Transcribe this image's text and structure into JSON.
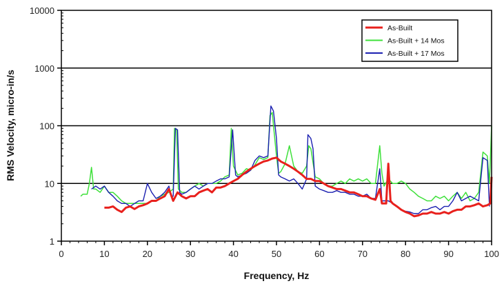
{
  "chart_data": {
    "type": "line",
    "title": "",
    "xlabel": "Frequency, Hz",
    "ylabel": "RMS Velocity, micro-in/s",
    "xlim": [
      0,
      100
    ],
    "ylim": [
      1,
      10000
    ],
    "yscale": "log",
    "x_ticks": [
      "0",
      "10",
      "20",
      "30",
      "40",
      "50",
      "60",
      "70",
      "80",
      "90",
      "100"
    ],
    "y_ticks": [
      "1",
      "10",
      "100",
      "1000",
      "10000"
    ],
    "grid": "horizontal at decades",
    "legend_position": "top-right",
    "series": [
      {
        "name": "As-Built",
        "color": "#e8201c",
        "points": [
          [
            10,
            3.8
          ],
          [
            11,
            3.8
          ],
          [
            12,
            4
          ],
          [
            13,
            3.5
          ],
          [
            14,
            3.2
          ],
          [
            15,
            3.8
          ],
          [
            16,
            4
          ],
          [
            17,
            3.6
          ],
          [
            18,
            4
          ],
          [
            19,
            4.2
          ],
          [
            20,
            4.5
          ],
          [
            21,
            5
          ],
          [
            22,
            5
          ],
          [
            23,
            5.5
          ],
          [
            24,
            6
          ],
          [
            25,
            8
          ],
          [
            26,
            5
          ],
          [
            27,
            7
          ],
          [
            28,
            6
          ],
          [
            29,
            5.5
          ],
          [
            30,
            6
          ],
          [
            31,
            6
          ],
          [
            32,
            7
          ],
          [
            33,
            7.5
          ],
          [
            34,
            8
          ],
          [
            35,
            7
          ],
          [
            36,
            8.5
          ],
          [
            37,
            8.5
          ],
          [
            38,
            9
          ],
          [
            39,
            10
          ],
          [
            40,
            11
          ],
          [
            41,
            12
          ],
          [
            42,
            14
          ],
          [
            43,
            16
          ],
          [
            44,
            18
          ],
          [
            45,
            20
          ],
          [
            46,
            22
          ],
          [
            47,
            24
          ],
          [
            48,
            25
          ],
          [
            49,
            27
          ],
          [
            50,
            28
          ],
          [
            51,
            24
          ],
          [
            52,
            22
          ],
          [
            53,
            20
          ],
          [
            54,
            18
          ],
          [
            55,
            16
          ],
          [
            56,
            14
          ],
          [
            57,
            12
          ],
          [
            58,
            12
          ],
          [
            59,
            11
          ],
          [
            60,
            11
          ],
          [
            61,
            10
          ],
          [
            62,
            9
          ],
          [
            63,
            8.5
          ],
          [
            64,
            8
          ],
          [
            65,
            8
          ],
          [
            66,
            7.5
          ],
          [
            67,
            7
          ],
          [
            68,
            7
          ],
          [
            69,
            6.5
          ],
          [
            70,
            6
          ],
          [
            71,
            6
          ],
          [
            72,
            5.5
          ],
          [
            73,
            5.2
          ],
          [
            74,
            8
          ],
          [
            74.5,
            4.5
          ],
          [
            75.5,
            4.5
          ],
          [
            76,
            22
          ],
          [
            76.5,
            5
          ],
          [
            77,
            4.5
          ],
          [
            78,
            4
          ],
          [
            79,
            3.5
          ],
          [
            80,
            3.2
          ],
          [
            81,
            3
          ],
          [
            82,
            2.7
          ],
          [
            83,
            2.8
          ],
          [
            84,
            3
          ],
          [
            85,
            3
          ],
          [
            86,
            3.2
          ],
          [
            87,
            3
          ],
          [
            88,
            3
          ],
          [
            89,
            3.2
          ],
          [
            90,
            3
          ],
          [
            91,
            3.3
          ],
          [
            92,
            3.5
          ],
          [
            93,
            3.5
          ],
          [
            94,
            4
          ],
          [
            95,
            4
          ],
          [
            96,
            4.2
          ],
          [
            97,
            4.5
          ],
          [
            98,
            4
          ],
          [
            99,
            4.2
          ],
          [
            99.7,
            4.5
          ],
          [
            100,
            13
          ]
        ]
      },
      {
        "name": "As-Built + 14 Mos",
        "color": "#3ee03a",
        "points": [
          [
            4.5,
            6
          ],
          [
            5,
            6.5
          ],
          [
            6,
            6.5
          ],
          [
            6.5,
            10
          ],
          [
            7,
            19
          ],
          [
            7.5,
            8
          ],
          [
            8,
            8
          ],
          [
            9,
            7
          ],
          [
            10,
            9
          ],
          [
            11,
            7
          ],
          [
            12,
            7
          ],
          [
            13,
            6
          ],
          [
            14,
            5
          ],
          [
            15,
            4.5
          ],
          [
            16,
            4.5
          ],
          [
            17,
            4.5
          ],
          [
            18,
            4.5
          ],
          [
            19,
            4.5
          ],
          [
            20,
            4.5
          ],
          [
            21,
            5
          ],
          [
            22,
            5
          ],
          [
            23,
            6
          ],
          [
            24,
            6.5
          ],
          [
            25,
            7
          ],
          [
            26,
            8
          ],
          [
            26.3,
            90
          ],
          [
            26.8,
            85
          ],
          [
            27.2,
            8
          ],
          [
            28,
            7
          ],
          [
            29,
            7
          ],
          [
            30,
            8
          ],
          [
            31,
            9
          ],
          [
            32,
            10
          ],
          [
            33,
            9
          ],
          [
            34,
            10
          ],
          [
            35,
            10
          ],
          [
            36,
            10
          ],
          [
            37,
            11
          ],
          [
            38,
            13
          ],
          [
            39,
            14
          ],
          [
            39.5,
            90
          ],
          [
            40,
            20
          ],
          [
            41,
            14
          ],
          [
            42,
            15
          ],
          [
            43,
            18
          ],
          [
            44,
            17
          ],
          [
            45,
            21
          ],
          [
            46,
            28
          ],
          [
            47,
            26
          ],
          [
            48,
            28
          ],
          [
            48.5,
            150
          ],
          [
            49,
            170
          ],
          [
            50,
            30
          ],
          [
            50.5,
            15
          ],
          [
            51,
            16
          ],
          [
            52,
            22
          ],
          [
            53,
            45
          ],
          [
            54,
            20
          ],
          [
            55,
            16
          ],
          [
            56,
            15
          ],
          [
            57,
            20
          ],
          [
            57.5,
            45
          ],
          [
            58,
            40
          ],
          [
            59,
            13
          ],
          [
            60,
            12
          ],
          [
            61,
            10
          ],
          [
            62,
            9
          ],
          [
            63,
            9
          ],
          [
            64,
            10
          ],
          [
            65,
            11
          ],
          [
            66,
            10
          ],
          [
            67,
            12
          ],
          [
            68,
            11
          ],
          [
            69,
            12
          ],
          [
            70,
            11
          ],
          [
            71,
            12
          ],
          [
            72,
            10
          ],
          [
            73,
            10
          ],
          [
            74,
            45
          ],
          [
            74.5,
            15
          ],
          [
            75,
            9
          ],
          [
            76,
            12
          ],
          [
            77,
            10
          ],
          [
            78,
            10
          ],
          [
            79,
            11
          ],
          [
            80,
            10
          ],
          [
            81,
            8
          ],
          [
            82,
            7
          ],
          [
            83,
            6
          ],
          [
            84,
            5.5
          ],
          [
            85,
            5
          ],
          [
            86,
            5
          ],
          [
            87,
            6
          ],
          [
            88,
            5.5
          ],
          [
            89,
            6
          ],
          [
            90,
            5
          ],
          [
            91,
            6
          ],
          [
            92,
            7
          ],
          [
            93,
            5.5
          ],
          [
            94,
            7
          ],
          [
            95,
            5
          ],
          [
            96,
            5.5
          ],
          [
            97,
            7
          ],
          [
            98,
            35
          ],
          [
            99,
            30
          ],
          [
            99.5,
            10
          ],
          [
            100,
            100
          ]
        ]
      },
      {
        "name": "As-Built + 17 Mos",
        "color": "#1a1fb0",
        "points": [
          [
            7,
            8
          ],
          [
            8,
            9
          ],
          [
            9,
            8
          ],
          [
            10,
            9
          ],
          [
            11,
            7
          ],
          [
            12,
            6
          ],
          [
            13,
            5
          ],
          [
            14,
            4.5
          ],
          [
            15,
            4.5
          ],
          [
            16,
            4
          ],
          [
            17,
            4.5
          ],
          [
            18,
            5
          ],
          [
            19,
            5
          ],
          [
            20,
            10
          ],
          [
            21,
            7
          ],
          [
            22,
            5.5
          ],
          [
            23,
            6
          ],
          [
            24,
            7
          ],
          [
            25,
            9
          ],
          [
            25.5,
            6
          ],
          [
            26,
            6
          ],
          [
            26.5,
            90
          ],
          [
            27,
            85
          ],
          [
            27.5,
            7
          ],
          [
            28,
            6.5
          ],
          [
            29,
            7
          ],
          [
            30,
            8
          ],
          [
            31,
            9
          ],
          [
            32,
            8
          ],
          [
            33,
            9
          ],
          [
            34,
            10
          ],
          [
            35,
            10
          ],
          [
            36,
            11
          ],
          [
            37,
            12
          ],
          [
            38,
            12
          ],
          [
            39,
            13
          ],
          [
            39.8,
            85
          ],
          [
            40.5,
            14
          ],
          [
            41,
            13
          ],
          [
            42,
            14
          ],
          [
            43,
            15
          ],
          [
            44,
            17
          ],
          [
            45,
            25
          ],
          [
            46,
            30
          ],
          [
            47,
            28
          ],
          [
            48,
            30
          ],
          [
            48.7,
            220
          ],
          [
            49.3,
            180
          ],
          [
            50,
            60
          ],
          [
            50.5,
            14
          ],
          [
            51,
            13
          ],
          [
            52,
            12
          ],
          [
            53,
            11
          ],
          [
            54,
            12
          ],
          [
            55,
            10
          ],
          [
            56,
            8
          ],
          [
            57,
            12
          ],
          [
            57.3,
            70
          ],
          [
            58,
            60
          ],
          [
            58.5,
            40
          ],
          [
            59,
            9
          ],
          [
            60,
            8
          ],
          [
            61,
            7.5
          ],
          [
            62,
            7
          ],
          [
            63,
            7
          ],
          [
            64,
            7.5
          ],
          [
            65,
            7
          ],
          [
            66,
            7
          ],
          [
            67,
            6.5
          ],
          [
            68,
            6.5
          ],
          [
            69,
            6
          ],
          [
            70,
            6
          ],
          [
            71,
            6.5
          ],
          [
            72,
            5.5
          ],
          [
            73,
            5.5
          ],
          [
            74,
            18
          ],
          [
            74.5,
            5
          ],
          [
            75,
            5
          ],
          [
            76,
            5
          ],
          [
            77,
            4.5
          ],
          [
            78,
            4
          ],
          [
            79,
            3.5
          ],
          [
            80,
            3.3
          ],
          [
            81,
            3.2
          ],
          [
            82,
            3
          ],
          [
            83,
            3
          ],
          [
            84,
            3.5
          ],
          [
            85,
            3.5
          ],
          [
            86,
            3.8
          ],
          [
            87,
            4
          ],
          [
            88,
            3.5
          ],
          [
            89,
            4
          ],
          [
            90,
            4
          ],
          [
            91,
            5
          ],
          [
            92,
            7
          ],
          [
            93,
            5
          ],
          [
            94,
            5.5
          ],
          [
            95,
            6
          ],
          [
            96,
            5.5
          ],
          [
            97,
            5
          ],
          [
            98,
            28
          ],
          [
            99,
            25
          ],
          [
            99.5,
            4
          ]
        ]
      }
    ]
  }
}
